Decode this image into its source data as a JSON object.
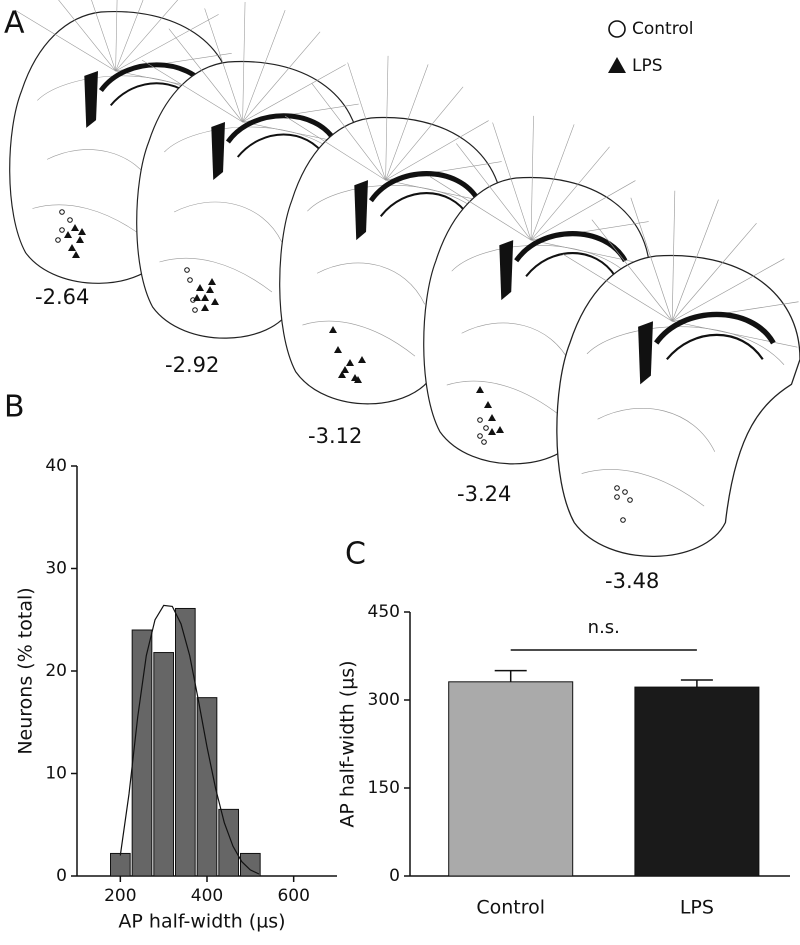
{
  "panel_a": {
    "label": "A",
    "legend": [
      "Control",
      "LPS"
    ],
    "sections": [
      "-2.64",
      "-2.92",
      "-3.12",
      "-3.24",
      "-3.48"
    ]
  },
  "chart_data": [
    {
      "type": "histogram",
      "panel_label": "B",
      "x_label": "AP half-width (µs)",
      "y_label": "Neurons (% total)",
      "bins": [
        175,
        225,
        275,
        325,
        375,
        425,
        475,
        525
      ],
      "values": [
        2.2,
        24,
        21.8,
        26.1,
        17.4,
        6.5,
        2.2
      ],
      "color": "#666666",
      "fit_curve": {
        "x": [
          200,
          220,
          240,
          260,
          280,
          300,
          320,
          340,
          360,
          380,
          400,
          420,
          440,
          460,
          480,
          500,
          520
        ],
        "values": [
          2,
          8,
          15.5,
          21.5,
          25,
          26.4,
          26.3,
          24.6,
          21.5,
          17.2,
          12.6,
          8.5,
          5.2,
          2.9,
          1.4,
          0.6,
          0.2
        ]
      },
      "xlim": [
        100,
        700
      ],
      "xticks": [
        200,
        400,
        600
      ],
      "ylim": [
        0,
        40
      ],
      "yticks": [
        0,
        10,
        20,
        30,
        40
      ]
    },
    {
      "type": "bar",
      "panel_label": "C",
      "y_label": "AP half-width (µs)",
      "categories": [
        "Control",
        "LPS"
      ],
      "values": [
        331,
        322
      ],
      "errors": [
        19,
        12
      ],
      "colors": [
        "#aaaaaa",
        "#1a1a1a"
      ],
      "annotation": "n.s.",
      "ylim": [
        0,
        450
      ],
      "yticks": [
        0,
        150,
        300,
        450
      ]
    }
  ]
}
